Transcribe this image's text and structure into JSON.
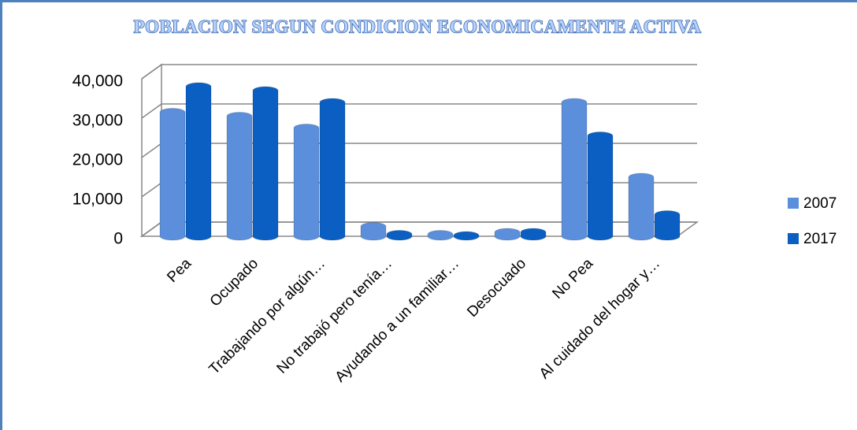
{
  "chart_data": {
    "type": "bar",
    "title": "POBLACION SEGUN CONDICION ECONOMICAMENTE ACTIVA",
    "categories": [
      "Pea",
      "Ocupado",
      "Trabajando por algún…",
      "No trabajó pero tenía…",
      "Ayudando a un familiar…",
      "Desocuado",
      "No Pea",
      "Al cuidado del hogar y…"
    ],
    "series": [
      {
        "name": "2007",
        "color": "#5b8fdb",
        "values": [
          31500,
          30500,
          27500,
          2500,
          500,
          1000,
          34000,
          15000
        ]
      },
      {
        "name": "2017",
        "color": "#0b5fc2",
        "values": [
          38000,
          37000,
          34000,
          500,
          200,
          1000,
          25500,
          5500
        ]
      }
    ],
    "ylim": [
      0,
      40000
    ],
    "yticks": [
      0,
      {
        "value": 10000,
        "label": "10,000"
      },
      {
        "value": 20000,
        "label": "20,000"
      },
      {
        "value": 30000,
        "label": "30,000"
      },
      {
        "value": 40000,
        "label": "40,000"
      }
    ],
    "grid": true,
    "legend": "right"
  }
}
